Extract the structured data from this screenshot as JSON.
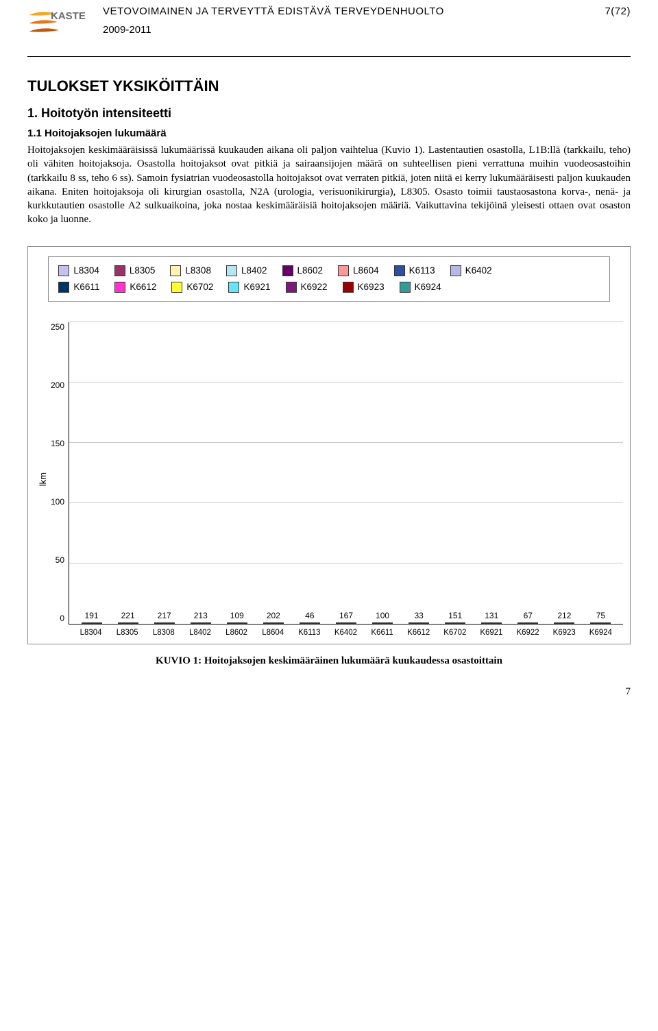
{
  "header": {
    "logo_text": "KASTE",
    "logo_colors": [
      "#f5a623",
      "#e67817",
      "#c05a0a"
    ],
    "title": "VETOVOIMAINEN JA TERVEYTTÄ EDISTÄVÄ TERVEYDENHUOLTO",
    "years": "2009-2011",
    "page_code": "7(72)"
  },
  "section": {
    "title": "TULOKSET YKSIKÖITTÄIN",
    "sub_title": "1. Hoitotyön intensiteetti",
    "subsub_title": "1.1 Hoitojaksojen lukumäärä",
    "body": "Hoitojaksojen keskimääräisissä lukumäärissä kuukauden aikana oli paljon vaihtelua (Kuvio 1). Lastentautien osastolla, L1B:llä (tarkkailu, teho) oli vähiten hoitojaksoja. Osastolla hoitojaksot ovat pitkiä ja sairaansijojen määrä on suhteellisen pieni verrattuna muihin vuodeosastoihin (tarkkailu 8 ss, teho 6 ss). Samoin fysiatrian vuodeosastolla hoitojaksot ovat verraten pitkiä, joten niitä ei kerry lukumääräisesti paljon kuukauden aikana. Eniten hoitojaksoja oli kirurgian osastolla, N2A (urologia, verisuonikirurgia), L8305. Osasto toimii taustaosastona korva-, nenä- ja kurkkutautien osastolle A2 sulkuaikoina, joka nostaa keskimääräisiä hoitojaksojen määriä. Vaikuttavina tekijöinä yleisesti ottaen ovat osaston koko ja luonne."
  },
  "chart": {
    "type": "bar",
    "ylabel": "lkm",
    "ylim": [
      0,
      250
    ],
    "ytick_step": 50,
    "yticks": [
      "250",
      "200",
      "150",
      "100",
      "50",
      "0"
    ],
    "grid_color": "#cccccc",
    "background_color": "#ffffff",
    "bar_border": "#333333",
    "categories": [
      "L8304",
      "L8305",
      "L8308",
      "L8402",
      "L8602",
      "L8604",
      "K6113",
      "K6402",
      "K6611",
      "K6612",
      "K6702",
      "K6921",
      "K6922",
      "K6923",
      "K6924"
    ],
    "values": [
      191,
      221,
      217,
      213,
      109,
      202,
      46,
      167,
      100,
      33,
      151,
      131,
      67,
      212,
      75
    ],
    "colors": [
      "#c8c1ee",
      "#993366",
      "#fff2b3",
      "#b8e5f3",
      "#660066",
      "#ff9999",
      "#2e4f9e",
      "#b8b8e6",
      "#003366",
      "#ff33cc",
      "#ffff33",
      "#66e5ff",
      "#7a1a7a",
      "#990000",
      "#339999"
    ],
    "legend_row1": [
      {
        "label": "L8304",
        "color": "#c8c1ee"
      },
      {
        "label": "L8305",
        "color": "#993366"
      },
      {
        "label": "L8308",
        "color": "#fff2b3"
      },
      {
        "label": "L8402",
        "color": "#b8e5f3"
      },
      {
        "label": "L8602",
        "color": "#660066"
      },
      {
        "label": "L8604",
        "color": "#ff9999"
      },
      {
        "label": "K6113",
        "color": "#2e4f9e"
      },
      {
        "label": "K6402",
        "color": "#b8b8e6"
      }
    ],
    "legend_row2": [
      {
        "label": "K6611",
        "color": "#003366"
      },
      {
        "label": "K6612",
        "color": "#ff33cc"
      },
      {
        "label": "K6702",
        "color": "#ffff33"
      },
      {
        "label": "K6921",
        "color": "#66e5ff"
      },
      {
        "label": "K6922",
        "color": "#7a1a7a"
      },
      {
        "label": "K6923",
        "color": "#990000"
      },
      {
        "label": "K6924",
        "color": "#339999"
      }
    ]
  },
  "caption": "KUVIO 1: Hoitojaksojen keskimääräinen lukumäärä kuukaudessa osastoittain",
  "page_number": "7"
}
